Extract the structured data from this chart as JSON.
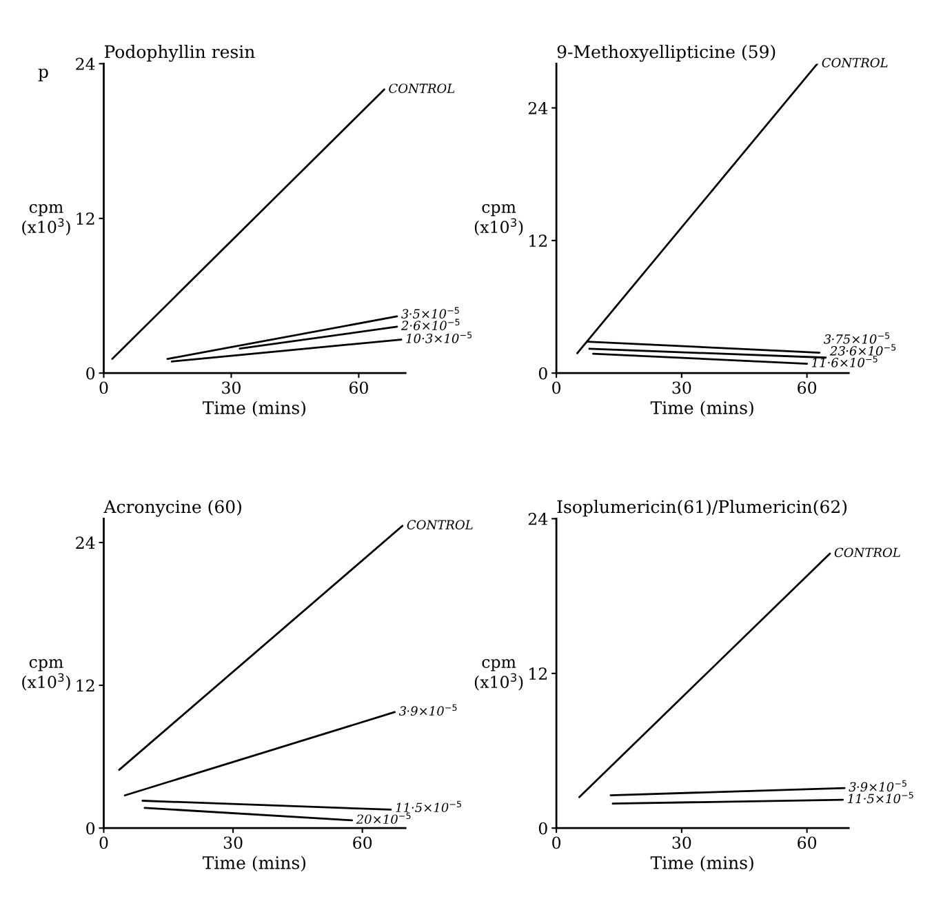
{
  "chart_data": [
    {
      "type": "line",
      "title": "Podophyllin resin",
      "xlabel": "Time (mins)",
      "ylabel": "cpm\n(x10$^{3}$)",
      "xlim": [
        0,
        71
      ],
      "ylim": [
        0,
        24
      ],
      "xticks": [
        0,
        30,
        60
      ],
      "yticks": [
        0,
        12,
        24
      ],
      "grid": false,
      "marker": "none",
      "line_style": "solid",
      "annotations": [
        "p"
      ],
      "series": [
        {
          "name": "CONTROL",
          "color": "#000000",
          "x": [
            2,
            66
          ],
          "values": [
            1.1,
            22.0
          ]
        },
        {
          "name": "3·5×10$^{−5}$",
          "color": "#000000",
          "x": [
            15,
            69
          ],
          "values": [
            1.1,
            4.4
          ]
        },
        {
          "name": "2·6×10$^{−5}$",
          "color": "#000000",
          "x": [
            32,
            69
          ],
          "values": [
            1.9,
            3.6
          ]
        },
        {
          "name": "10·3×10$^{−5}$",
          "color": "#000000",
          "x": [
            16,
            70
          ],
          "values": [
            0.9,
            2.6
          ]
        }
      ]
    },
    {
      "type": "line",
      "title": "9-Methoxyellipticine (59)",
      "xlabel": "Time (mins)",
      "ylabel": "cpm\n(x10$^{3}$)",
      "xlim": [
        0,
        70
      ],
      "ylim": [
        0,
        28
      ],
      "xticks": [
        0,
        30,
        60
      ],
      "yticks": [
        0,
        12,
        24
      ],
      "grid": false,
      "marker": "none",
      "line_style": "solid",
      "series": [
        {
          "name": "CONTROL",
          "color": "#000000",
          "x": [
            5,
            62.5
          ],
          "values": [
            1.8,
            28
          ]
        },
        {
          "name": "3·75×10$^{−5}$",
          "color": "#000000",
          "x": [
            7.4,
            63
          ],
          "values": [
            2.85,
            1.85
          ]
        },
        {
          "name": "23·6×10$^{−5}$",
          "color": "#000000",
          "x": [
            7.9,
            64.5
          ],
          "values": [
            2.2,
            1.4
          ]
        },
        {
          "name": "11·6×10$^{−5}$",
          "color": "#000000",
          "x": [
            8.8,
            60
          ],
          "values": [
            1.75,
            0.85
          ]
        }
      ]
    },
    {
      "type": "line",
      "title": "Acronycine (60)",
      "xlabel": "Time (mins)",
      "ylabel": "cpm\n(x10$^{3}$)",
      "xlim": [
        0,
        70
      ],
      "ylim": [
        0,
        26
      ],
      "xticks": [
        0,
        30,
        60
      ],
      "yticks": [
        0,
        12,
        24
      ],
      "grid": false,
      "marker": "none",
      "line_style": "solid",
      "series": [
        {
          "name": "CONTROL",
          "color": "#000000",
          "x": [
            3.6,
            69.3
          ],
          "values": [
            4.9,
            25.4
          ]
        },
        {
          "name": "3·9×10$^{−5}$",
          "color": "#000000",
          "x": [
            4.9,
            67.5
          ],
          "values": [
            2.75,
            9.75
          ]
        },
        {
          "name": "11·5×10$^{−5}$",
          "color": "#000000",
          "x": [
            9,
            66.6
          ],
          "values": [
            2.3,
            1.55
          ]
        },
        {
          "name": "20×10$^{−5}$",
          "color": "#000000",
          "x": [
            9.5,
            57.6
          ],
          "values": [
            1.7,
            0.65
          ]
        }
      ]
    },
    {
      "type": "line",
      "title": "Isoplumericin(61)/Plumericin(62)",
      "xlabel": "Time (mins)",
      "ylabel": "cpm\n(x10$^{3}$)",
      "xlim": [
        0,
        70
      ],
      "ylim": [
        0,
        24
      ],
      "xticks": [
        0,
        30,
        60
      ],
      "yticks": [
        0,
        12,
        24
      ],
      "grid": false,
      "marker": "none",
      "line_style": "solid",
      "series": [
        {
          "name": "CONTROL",
          "color": "#000000",
          "x": [
            5.5,
            65.5
          ],
          "values": [
            2.4,
            21.3
          ]
        },
        {
          "name": "3·9×10$^{−5}$",
          "color": "#000000",
          "x": [
            13,
            69
          ],
          "values": [
            2.55,
            3.1
          ]
        },
        {
          "name": "11·5×10$^{−5}$",
          "color": "#000000",
          "x": [
            13.5,
            68.6
          ],
          "values": [
            1.9,
            2.2
          ]
        }
      ]
    }
  ]
}
